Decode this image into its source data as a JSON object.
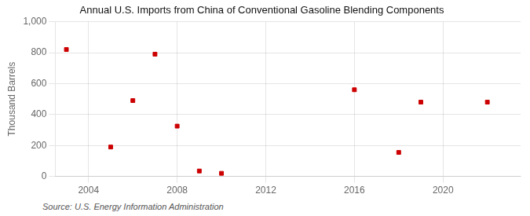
{
  "chart_data": {
    "type": "scatter",
    "title": "Annual U.S. Imports from China of Conventional Gasoline Blending Components",
    "ylabel": "Thousand Barrels",
    "annotations": [
      "Source: U.S. Energy Information Administration"
    ],
    "x": [
      2003,
      2005,
      2006,
      2007,
      2008,
      2009,
      2010,
      2016,
      2018,
      2019,
      2022
    ],
    "values": [
      820,
      190,
      490,
      790,
      325,
      35,
      20,
      560,
      155,
      480,
      480
    ],
    "color": "#cc0000",
    "marker": "square",
    "xlim": [
      2002.5,
      2023.5
    ],
    "xticks": [
      2004,
      2008,
      2012,
      2016,
      2020
    ],
    "ylim": [
      0,
      1000
    ],
    "yticks": [
      0,
      200,
      400,
      600,
      800,
      {
        "value": 1000,
        "label": "1,000"
      }
    ],
    "grid": true
  }
}
